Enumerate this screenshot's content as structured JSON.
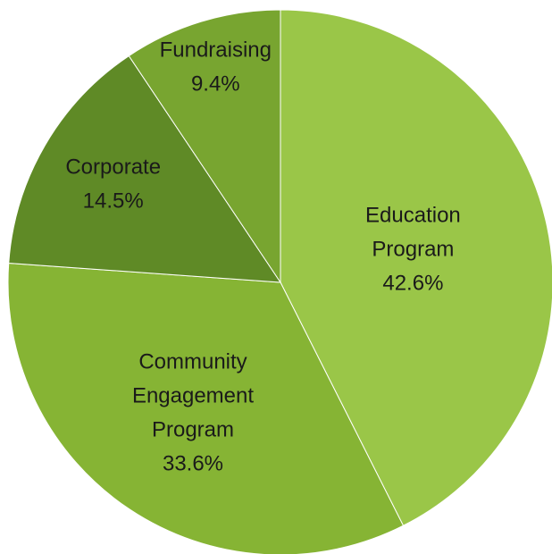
{
  "chart_data": {
    "type": "pie",
    "title": "",
    "slices": [
      {
        "name": "Education Program",
        "label_lines": [
          "Education",
          "Program"
        ],
        "value": 42.6,
        "value_label": "42.6%",
        "color": "#9ac648"
      },
      {
        "name": "Community Engagement Program",
        "label_lines": [
          "Community",
          "Engagement",
          "Program"
        ],
        "value": 33.6,
        "value_label": "33.6%",
        "color": "#86b434"
      },
      {
        "name": "Corporate",
        "label_lines": [
          "Corporate"
        ],
        "value": 14.5,
        "value_label": "14.5%",
        "color": "#5f8a26"
      },
      {
        "name": "Fundraising",
        "label_lines": [
          "Fundraising"
        ],
        "value": 9.4,
        "value_label": "9.4%",
        "color": "#78a530"
      }
    ],
    "start_angle": "top",
    "direction": "clockwise",
    "legend": "none",
    "labels_placement": "inside"
  }
}
